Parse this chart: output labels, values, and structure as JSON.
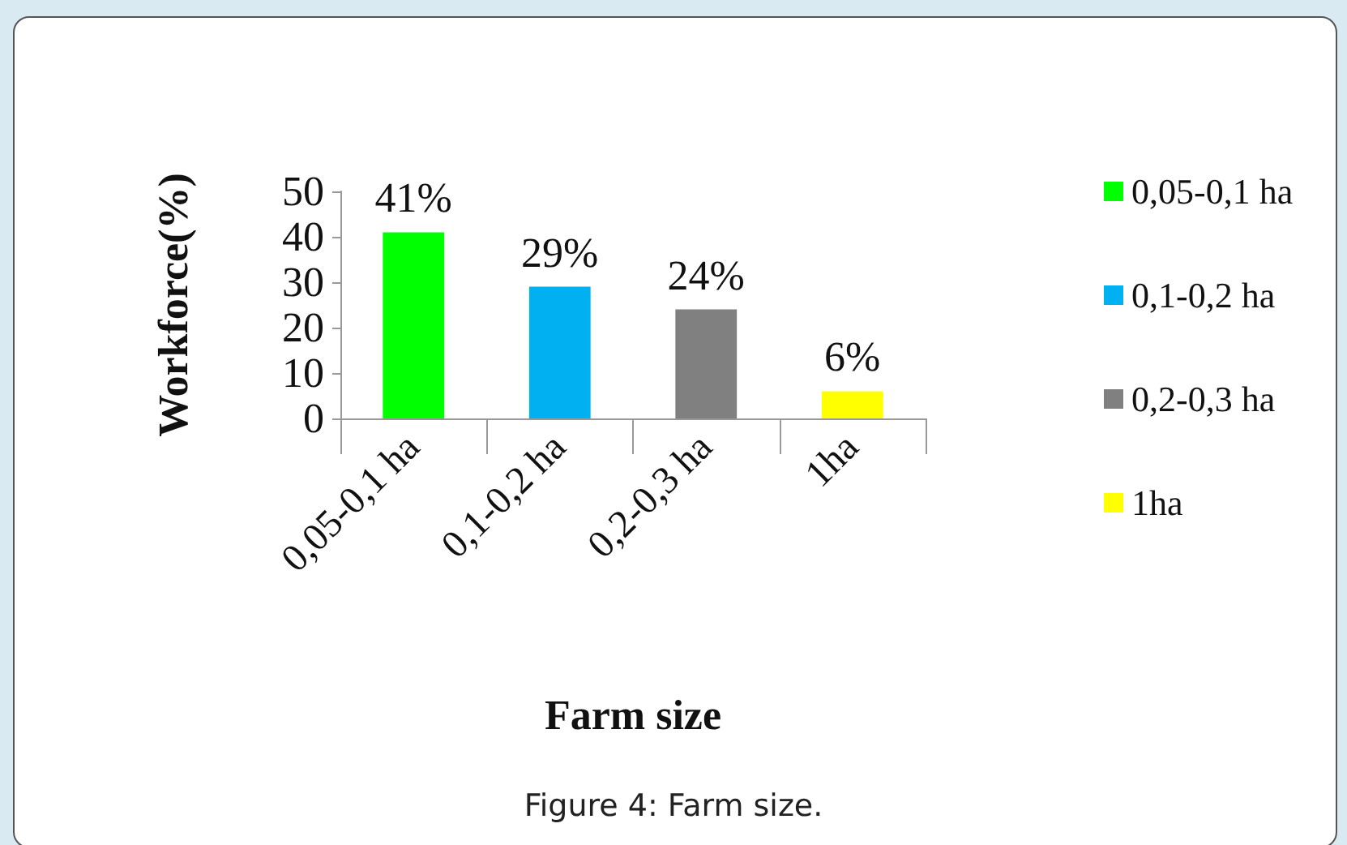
{
  "chart_data": {
    "type": "bar",
    "xlabel": "Farm size",
    "ylabel": "Workforce(%)",
    "categories": [
      "0,05-0,1 ha",
      "0,1-0,2 ha",
      "0,2-0,3 ha",
      "1ha"
    ],
    "series": [
      {
        "name": "0,05-0,1 ha",
        "color": "#00ff00",
        "values": [
          41,
          null,
          null,
          null
        ],
        "value_labels": [
          "41%",
          null,
          null,
          null
        ]
      },
      {
        "name": "0,1-0,2 ha",
        "color": "#00b0f0",
        "values": [
          null,
          29,
          null,
          null
        ],
        "value_labels": [
          null,
          "29%",
          null,
          null
        ]
      },
      {
        "name": "0,2-0,3 ha",
        "color": "#808080",
        "values": [
          null,
          null,
          24,
          null
        ],
        "value_labels": [
          null,
          null,
          "24%",
          null
        ]
      },
      {
        "name": "1ha",
        "color": "#ffff00",
        "values": [
          null,
          null,
          null,
          6
        ],
        "value_labels": [
          null,
          null,
          null,
          "6%"
        ]
      }
    ],
    "ylim": [
      0,
      50
    ],
    "yticks": [
      0,
      10,
      20,
      30,
      40,
      50
    ],
    "grid": false,
    "legend": "right",
    "annotations": [
      "Figure 4: Farm size."
    ]
  }
}
